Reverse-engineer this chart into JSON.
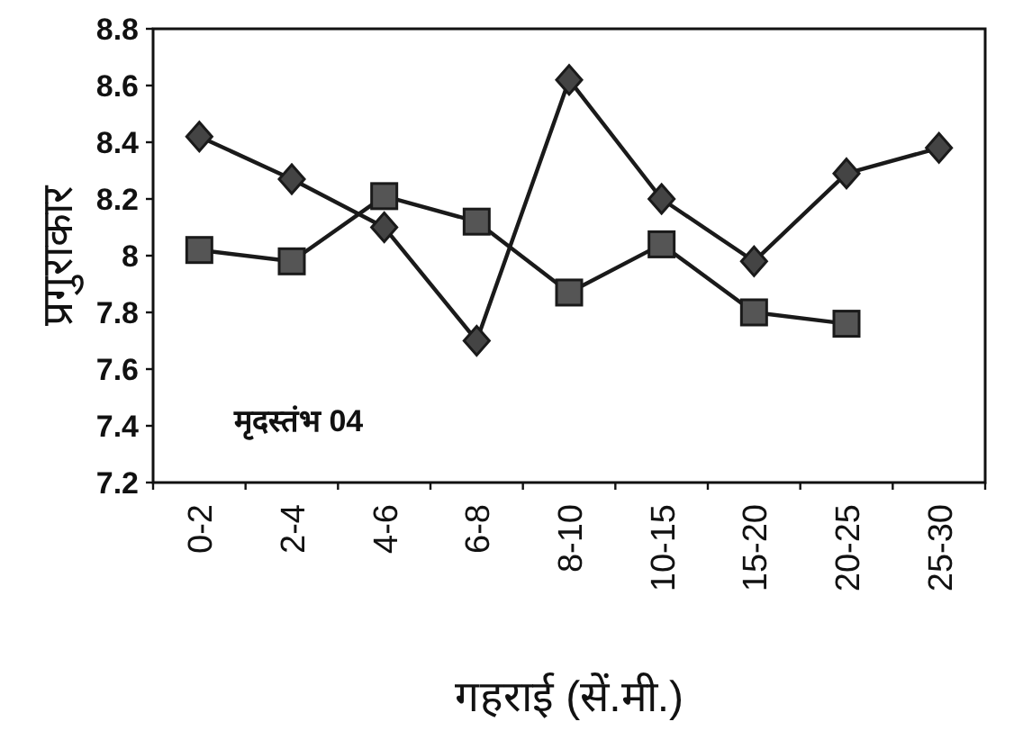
{
  "chart_data": {
    "type": "line",
    "xlabel": "गहराई (सें.मी.)",
    "ylabel": "प्रगुराकार",
    "categories": [
      "0-2",
      "2-4",
      "4-6",
      "6-8",
      "8-10",
      "10-15",
      "15-20",
      "20-25",
      "25-30"
    ],
    "series": [
      {
        "color": "#1a1a1a",
        "marker": "diamond",
        "values": [
          8.42,
          8.27,
          8.1,
          7.7,
          8.62,
          8.2,
          7.98,
          8.29,
          8.38
        ]
      },
      {
        "color": "#1a1a1a",
        "marker": "square",
        "values": [
          8.02,
          7.98,
          8.21,
          8.12,
          7.87,
          8.04,
          7.8,
          7.76,
          null
        ]
      }
    ],
    "ylim": [
      7.2,
      8.8
    ],
    "yticks": [
      {
        "value": 7.2,
        "label": "7.2"
      },
      {
        "value": 7.4,
        "label": "7.4"
      },
      {
        "value": 7.6,
        "label": "7.6"
      },
      {
        "value": 7.8,
        "label": "7.8"
      },
      {
        "value": 8,
        "label": "8"
      },
      {
        "value": 8.2,
        "label": "8.2"
      },
      {
        "value": 8.4,
        "label": "8.4"
      },
      {
        "value": 8.6,
        "label": "8.6"
      },
      {
        "value": 8.8,
        "label": "8.8"
      }
    ],
    "annotations": [
      "मृदस्तंभ 04"
    ],
    "grid": false
  }
}
